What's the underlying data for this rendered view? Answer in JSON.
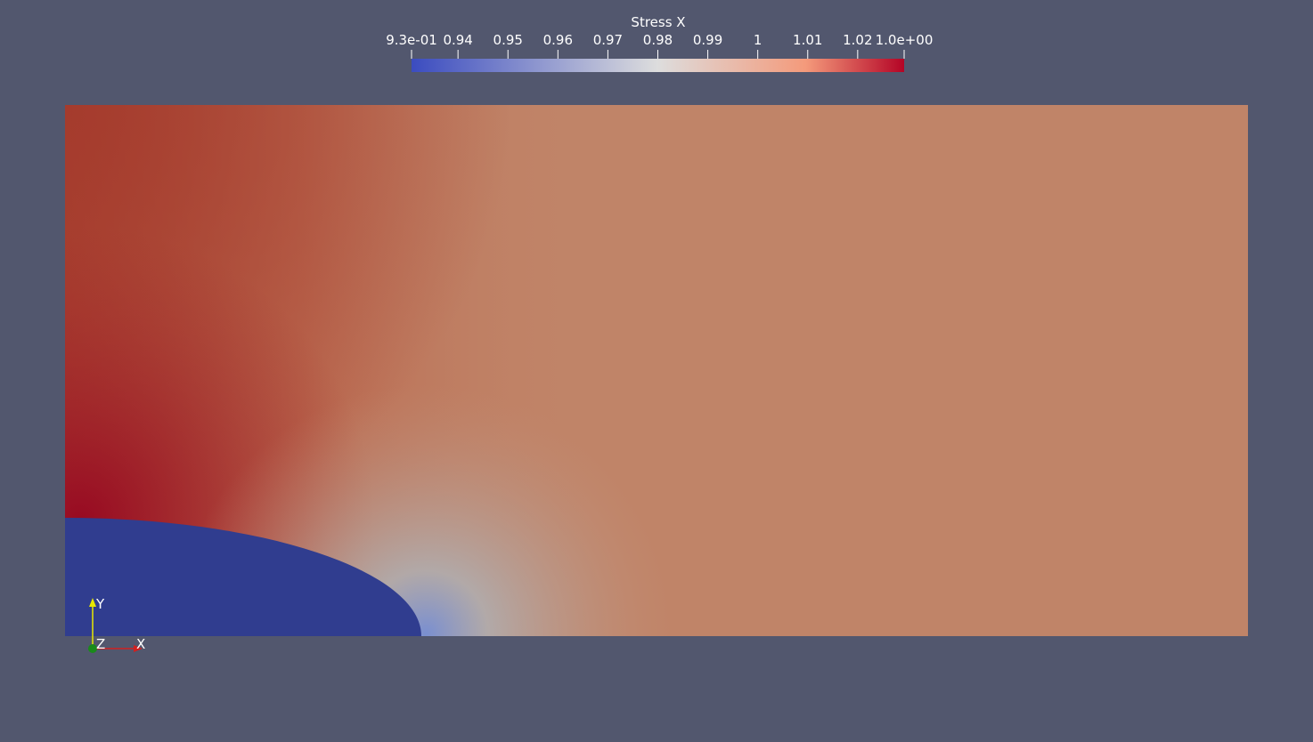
{
  "colorbar": {
    "title": "Stress X",
    "range": [
      0.9307,
      1.0293
    ],
    "ticks": [
      {
        "value": 0.9307,
        "label": "9.3e-01"
      },
      0.94,
      0.95,
      0.96,
      0.97,
      0.98,
      0.99,
      1,
      1.01,
      1.02,
      {
        "value": 1.0293,
        "label": "1.0e+00"
      }
    ]
  },
  "axes": {
    "y": "Y",
    "z": "Z",
    "x": "X"
  }
}
